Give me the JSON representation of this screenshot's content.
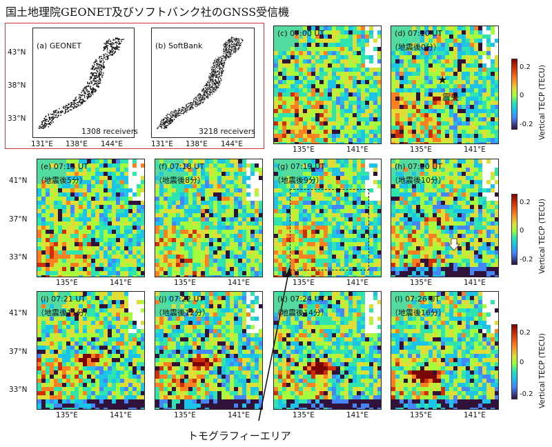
{
  "title": "国土地理院GEONET及びソフトバンク社のGNSS受信機",
  "receiver_maps": [
    {
      "label": "(a) GEONET",
      "count": "1308 receivers"
    },
    {
      "label": "(b) SoftBank",
      "count": "3218 receivers"
    }
  ],
  "receiver_axis": {
    "x_ticks": [
      "131°E",
      "138°E",
      "144°E"
    ],
    "y_ticks": [
      "43°N",
      "38°N",
      "33°N"
    ]
  },
  "tec_axis": {
    "x_ticks": [
      "135°E",
      "141°E"
    ],
    "y_ticks": [
      "41°N",
      "37°N",
      "33°N"
    ]
  },
  "panels": [
    {
      "label": "(c) 07:00 UT",
      "note": ""
    },
    {
      "label": "(d) 07:10 UT",
      "note": "（地震後0分）"
    },
    {
      "label": "(e) 07:15 UT",
      "note": "（地震後5分）"
    },
    {
      "label": "(f) 07:18 UT",
      "note": "（地震後8分）"
    },
    {
      "label": "(g) 07:19 UT",
      "note": "（地震後9分）"
    },
    {
      "label": "(h) 07:20 UT",
      "note": "（地震後10分）"
    },
    {
      "label": "(i) 07:21 UT",
      "note": "（地震後11分）"
    },
    {
      "label": "(j) 07:22 UT",
      "note": "（地震後12分）"
    },
    {
      "label": "(k) 07:24 UT",
      "note": "（地震後14分）"
    },
    {
      "label": "(l) 07:26 UT",
      "note": "（地震後16分）"
    }
  ],
  "epicenter_label": "震央",
  "colorbar": {
    "label": "Vertical TECP (TECU)",
    "ticks": [
      "0.2",
      "0",
      "-0.2"
    ]
  },
  "tomography_label": "トモグラフィーエリア",
  "chart_data": {
    "type": "heatmap",
    "title": "国土地理院GEONET及びソフトバンク社のGNSS受信機",
    "colorbar_label": "Vertical TECP (TECU)",
    "color_range": [
      -0.2,
      0.2
    ],
    "colormap": "turbo",
    "receiver_panels": [
      {
        "name": "(a) GEONET",
        "receivers": 1308
      },
      {
        "name": "(b) SoftBank",
        "receivers": 3218
      }
    ],
    "time_panels": [
      {
        "panel": "c",
        "time_ut": "07:00",
        "minutes_after_quake": null
      },
      {
        "panel": "d",
        "time_ut": "07:10",
        "minutes_after_quake": 0
      },
      {
        "panel": "e",
        "time_ut": "07:15",
        "minutes_after_quake": 5
      },
      {
        "panel": "f",
        "time_ut": "07:18",
        "minutes_after_quake": 8
      },
      {
        "panel": "g",
        "time_ut": "07:19",
        "minutes_after_quake": 9
      },
      {
        "panel": "h",
        "time_ut": "07:20",
        "minutes_after_quake": 10
      },
      {
        "panel": "i",
        "time_ut": "07:21",
        "minutes_after_quake": 11
      },
      {
        "panel": "j",
        "time_ut": "07:22",
        "minutes_after_quake": 12
      },
      {
        "panel": "k",
        "time_ut": "07:24",
        "minutes_after_quake": 14
      },
      {
        "panel": "l",
        "time_ut": "07:26",
        "minutes_after_quake": 16
      }
    ],
    "x_ticks": [
      "135°E",
      "141°E"
    ],
    "y_ticks": [
      "41°N",
      "37°N",
      "33°N"
    ]
  }
}
